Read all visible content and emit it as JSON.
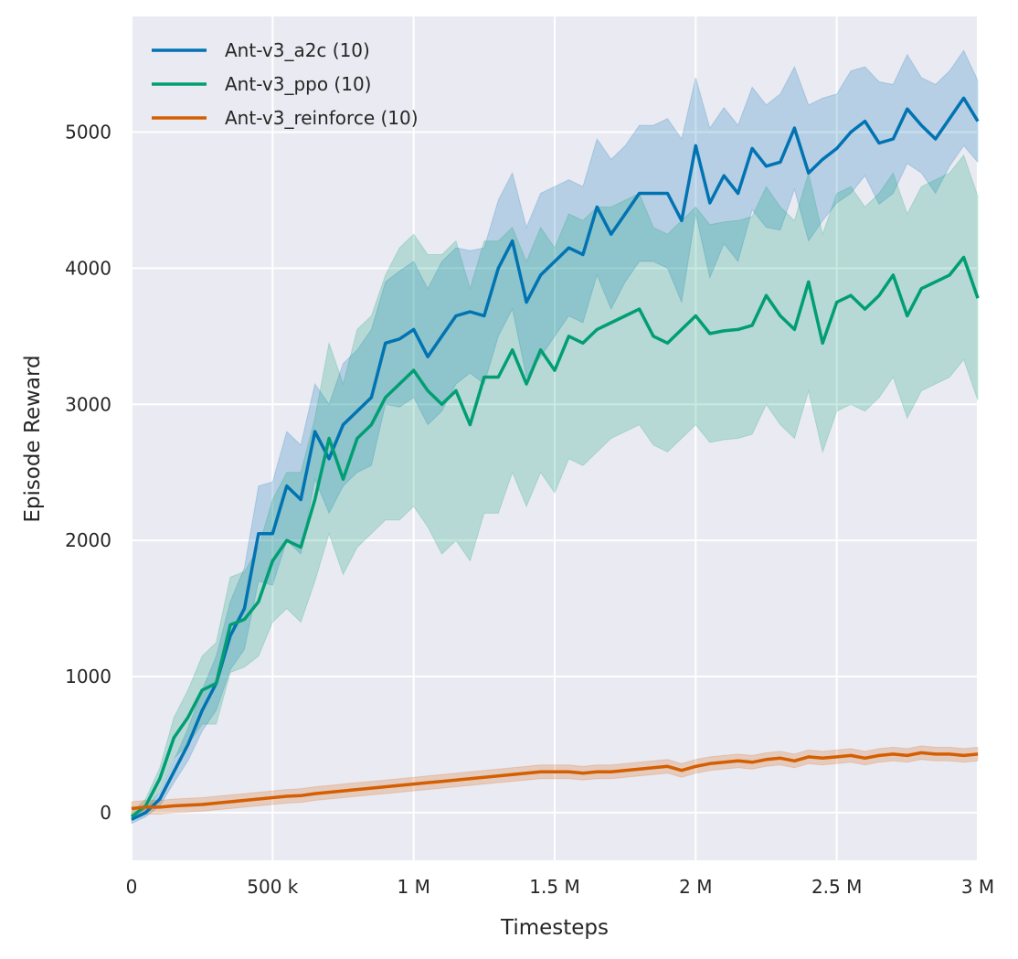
{
  "chart_data": {
    "type": "line",
    "title": "",
    "xlabel": "Timesteps",
    "ylabel": "Episode Reward",
    "xlim": [
      0,
      3000000
    ],
    "ylim": [
      -350,
      5850
    ],
    "grid": true,
    "background_color": "#eaeaf2",
    "legend_position": "top-left",
    "xticks": [
      0,
      500000,
      1000000,
      1500000,
      2000000,
      2500000,
      3000000
    ],
    "xtick_labels": [
      "0",
      "500 k",
      "1 M",
      "1.5 M",
      "2 M",
      "2.5 M",
      "3 M"
    ],
    "yticks": [
      0,
      1000,
      2000,
      3000,
      4000,
      5000
    ],
    "ytick_labels": [
      "0",
      "1000",
      "2000",
      "3000",
      "4000",
      "5000"
    ],
    "x_step": 50000,
    "series": [
      {
        "name": "Ant-v3_a2c (10)",
        "color": "#0173b2",
        "values": [
          -50,
          0,
          100,
          300,
          500,
          750,
          950,
          1300,
          1500,
          2050,
          2050,
          2400,
          2300,
          2800,
          2600,
          2850,
          2950,
          3050,
          3450,
          3480,
          3550,
          3350,
          3500,
          3650,
          3680,
          3650,
          4000,
          4200,
          3750,
          3950,
          4050,
          4150,
          4100,
          4450,
          4250,
          4400,
          4550,
          4550,
          4550,
          4350,
          4900,
          4480,
          4680,
          4550,
          4880,
          4750,
          4780,
          5030,
          4700,
          4800,
          4880,
          5000,
          5080,
          4920,
          4950,
          5170,
          5050,
          4950,
          5100,
          5250,
          5080
        ],
        "ci_halfwidth": [
          30,
          30,
          50,
          80,
          120,
          150,
          200,
          250,
          300,
          350,
          380,
          400,
          400,
          350,
          400,
          450,
          450,
          500,
          450,
          500,
          500,
          500,
          550,
          500,
          450,
          500,
          500,
          500,
          550,
          600,
          550,
          500,
          500,
          500,
          550,
          500,
          500,
          500,
          550,
          600,
          500,
          550,
          500,
          500,
          450,
          450,
          500,
          450,
          500,
          450,
          400,
          450,
          400,
          450,
          400,
          400,
          350,
          400,
          350,
          350,
          300
        ]
      },
      {
        "name": "Ant-v3_ppo (10)",
        "color": "#029e73",
        "values": [
          -30,
          50,
          250,
          550,
          700,
          900,
          950,
          1380,
          1420,
          1550,
          1850,
          2000,
          1950,
          2300,
          2750,
          2450,
          2750,
          2850,
          3050,
          3150,
          3250,
          3100,
          3000,
          3100,
          2850,
          3200,
          3200,
          3400,
          3150,
          3400,
          3250,
          3500,
          3450,
          3550,
          3600,
          3650,
          3700,
          3500,
          3450,
          3550,
          3650,
          3520,
          3540,
          3550,
          3580,
          3800,
          3650,
          3550,
          3900,
          3450,
          3750,
          3800,
          3700,
          3800,
          3950,
          3650,
          3850,
          3900,
          3950,
          4080,
          3780
        ],
        "ci_halfwidth": [
          30,
          50,
          80,
          150,
          200,
          250,
          300,
          350,
          350,
          400,
          450,
          500,
          550,
          600,
          700,
          700,
          800,
          800,
          900,
          1000,
          1000,
          1000,
          1100,
          1100,
          1000,
          1000,
          1000,
          900,
          900,
          900,
          900,
          900,
          900,
          900,
          850,
          850,
          850,
          800,
          800,
          800,
          800,
          800,
          800,
          800,
          800,
          800,
          800,
          800,
          800,
          800,
          800,
          800,
          750,
          750,
          750,
          750,
          750,
          750,
          750,
          750,
          750
        ]
      },
      {
        "name": "Ant-v3_reinforce (10)",
        "color": "#d55e00",
        "values": [
          30,
          40,
          40,
          50,
          55,
          60,
          70,
          80,
          90,
          100,
          110,
          120,
          125,
          140,
          150,
          160,
          170,
          180,
          190,
          200,
          210,
          220,
          230,
          240,
          250,
          260,
          270,
          280,
          290,
          300,
          300,
          300,
          290,
          300,
          300,
          310,
          320,
          330,
          340,
          310,
          340,
          360,
          370,
          380,
          370,
          390,
          400,
          380,
          410,
          400,
          410,
          420,
          400,
          420,
          430,
          420,
          440,
          430,
          430,
          420,
          430
        ],
        "ci_halfwidth": 50
      }
    ]
  }
}
